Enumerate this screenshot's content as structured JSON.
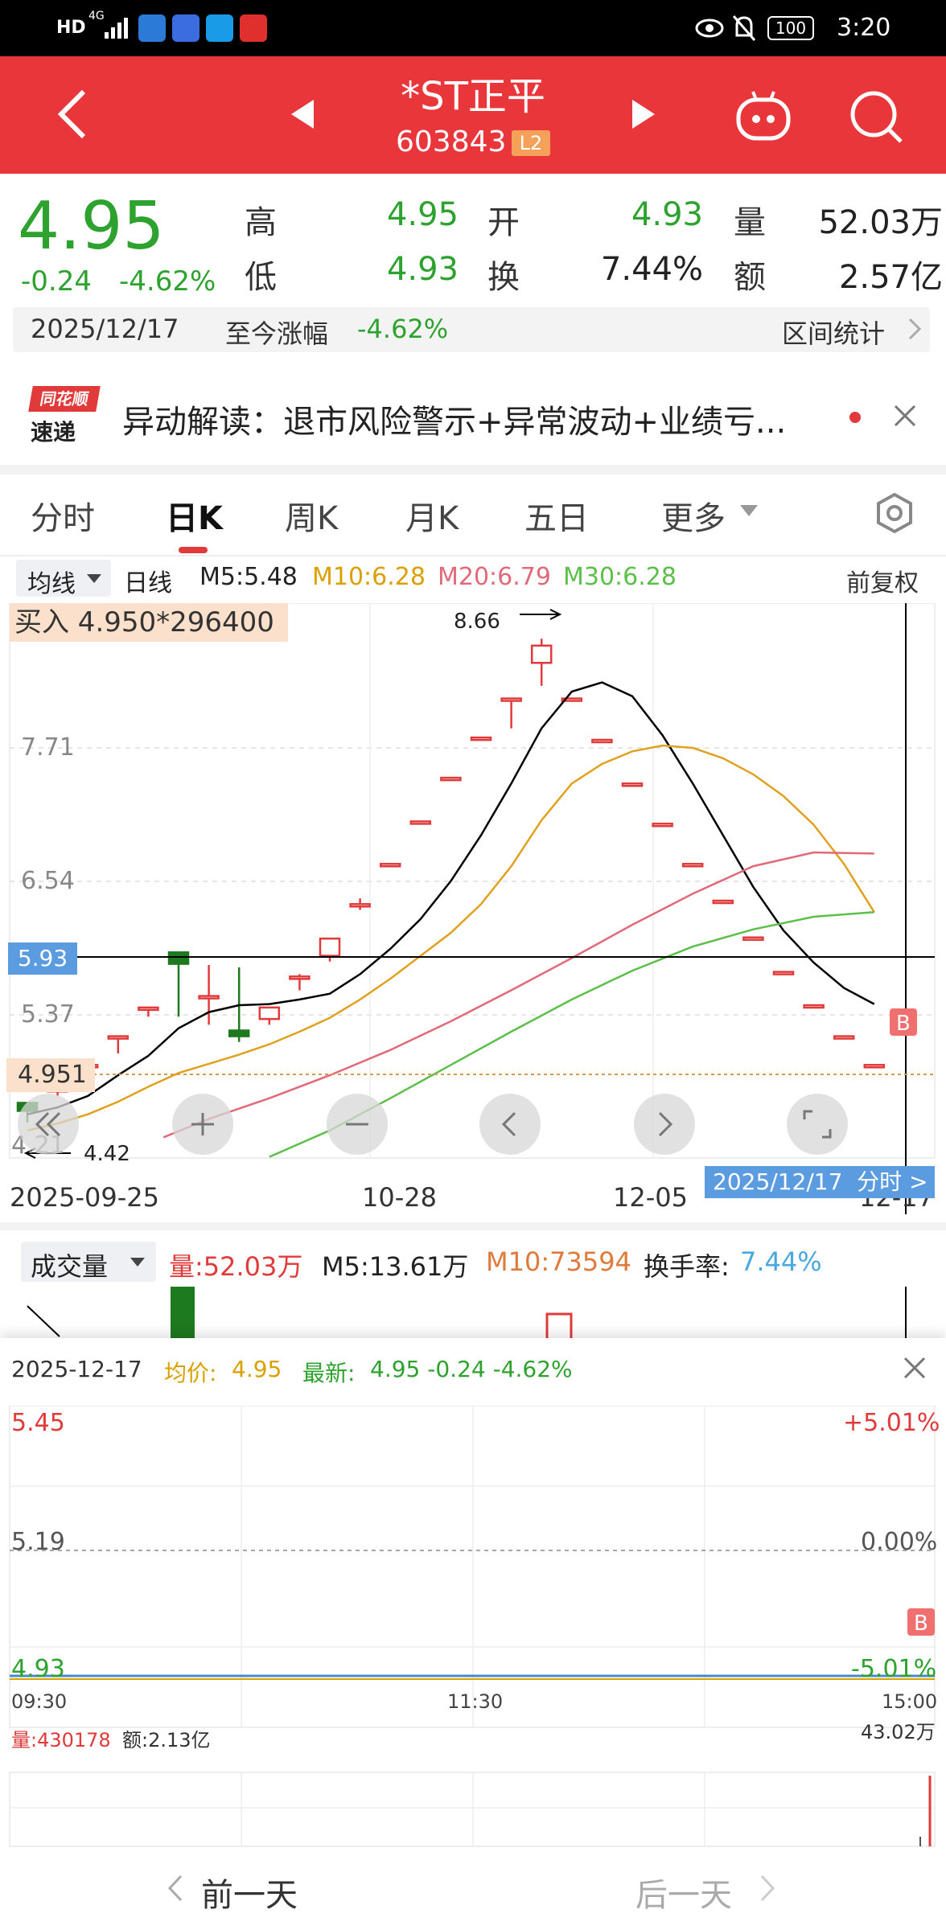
{
  "status_bar": {
    "hd": "HD",
    "network": "4G",
    "battery": "100",
    "time": "3:20"
  },
  "header": {
    "title": "*ST正平",
    "code": "603843",
    "badge": "L2"
  },
  "quote": {
    "price": "4.95",
    "change": "-0.24",
    "change_pct": "-4.62%",
    "high_label": "高",
    "high": "4.95",
    "open_label": "开",
    "open": "4.93",
    "volume_label": "量",
    "volume": "52.03万",
    "low_label": "低",
    "low": "4.93",
    "turnover_label": "换",
    "turnover": "7.44%",
    "amount_label": "额",
    "amount": "2.57亿"
  },
  "date_bar": {
    "date": "2025/12/17",
    "since_label": "至今涨幅",
    "since_value": "-4.62%",
    "stats_label": "区间统计"
  },
  "news": {
    "logo_top": "同花顺",
    "logo_bottom": "速递",
    "text": "异动解读：退市风险警示+异常波动+业绩亏..."
  },
  "tabs": {
    "fenshi": "分时",
    "day": "日K",
    "week": "周K",
    "month": "月K",
    "five": "五日",
    "more": "更多"
  },
  "kline": {
    "ma_select": "均线",
    "period": "日线",
    "ma5": "M5:5.48",
    "ma10": "M10:6.28",
    "ma20": "M20:6.79",
    "ma30": "M30:6.28",
    "adjust": "前复权",
    "buy_note": "买入 4.950*296400",
    "max_label": "8.66",
    "min_label": "4.42",
    "y_ticks": [
      "7.71",
      "6.54",
      "5.37",
      "4.21"
    ],
    "crosshair_price": "5.93",
    "buy_price_label": "4.951",
    "b_marker": "B",
    "x_labels": [
      "2025-09-25",
      "10-28",
      "12-05",
      "12-17"
    ],
    "tooltip": "2025/12/17  分时 >",
    "colors": {
      "up": "#e03a3a",
      "down": "#1e7a1e",
      "ma5": "#000000",
      "ma10": "#e0a020",
      "ma20": "#e06a7a",
      "ma30": "#5cbf4a"
    }
  },
  "chart_data": {
    "type": "candlestick",
    "x": [
      "2025-09-25",
      "10-28",
      "12-05",
      "12-17"
    ],
    "ylim": [
      4.21,
      8.66
    ],
    "ma_last": {
      "M5": 5.48,
      "M10": 6.28,
      "M20": 6.79,
      "M30": 6.28
    },
    "last_close": 4.95
  },
  "volume": {
    "label": "成交量",
    "vol": "量:52.03万",
    "m5": "M5:13.61万",
    "m10": "M10:73594",
    "turnover_label": "换手率:",
    "turnover": "7.44%"
  },
  "intraday": {
    "date": "2025-12-17",
    "avg_label": "均价:",
    "avg": "4.95",
    "latest_label": "最新:",
    "latest": "4.95 -0.24 -4.62%",
    "p_high": "5.45",
    "p_mid": "5.19",
    "p_low": "4.93",
    "pct_high": "+5.01%",
    "pct_mid": "0.00%",
    "pct_low": "-5.01%",
    "t_start": "09:30",
    "t_mid": "11:30",
    "t_end": "15:00",
    "vol": "量:430178",
    "amount": "额:2.13亿",
    "vol_max": "43.02万",
    "b_marker": "B"
  },
  "nav": {
    "prev": "前一天",
    "next": "后一天"
  }
}
